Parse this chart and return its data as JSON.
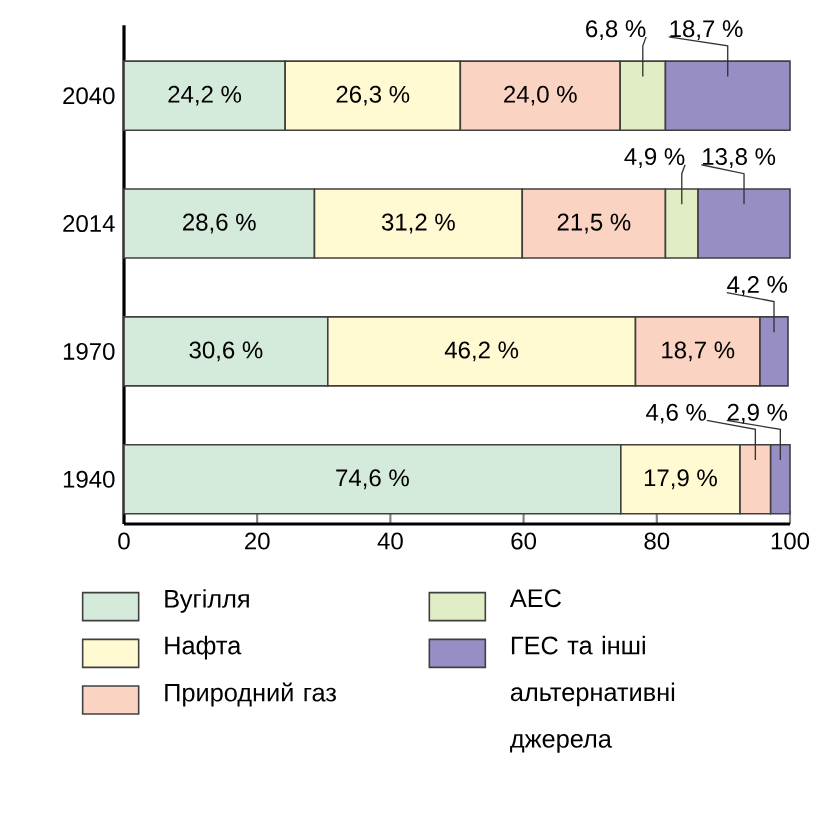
{
  "chart_data": {
    "type": "bar",
    "orientation": "horizontal",
    "stacked": true,
    "categories": [
      "2040",
      "2014",
      "1970",
      "1940"
    ],
    "series": [
      {
        "name": "Вугілля",
        "color": "#d4ebdc",
        "values": [
          24.2,
          28.6,
          30.6,
          74.6
        ],
        "value_labels": [
          "24,2 %",
          "28,6 %",
          "30,6 %",
          "74,6 %"
        ]
      },
      {
        "name": "Нафта",
        "color": "#fffad2",
        "values": [
          26.3,
          31.2,
          46.2,
          17.9
        ],
        "value_labels": [
          "26,3 %",
          "31,2 %",
          "46,2 %",
          "17,9 %"
        ]
      },
      {
        "name": "Природний газ",
        "color": "#fbd3c3",
        "values": [
          24.0,
          21.5,
          18.7,
          4.6
        ],
        "value_labels": [
          "24,0 %",
          "21,5 %",
          "18,7 %",
          "4,6 %"
        ]
      },
      {
        "name": "АЕС",
        "color": "#e1edc4",
        "values": [
          6.8,
          4.9,
          null,
          null
        ],
        "value_labels": [
          "6,8 %",
          "4,9 %",
          null,
          null
        ]
      },
      {
        "name": "ГЕС та інші альтернативні джерела",
        "color": "#978fc4",
        "values": [
          18.7,
          13.8,
          4.2,
          2.9
        ],
        "value_labels": [
          "18,7 %",
          "13,8 %",
          "4,2 %",
          "2,9 %"
        ]
      }
    ],
    "xlim": [
      0,
      100
    ],
    "xticks": [
      0,
      20,
      40,
      60,
      80,
      100
    ],
    "legend": "bottom"
  }
}
